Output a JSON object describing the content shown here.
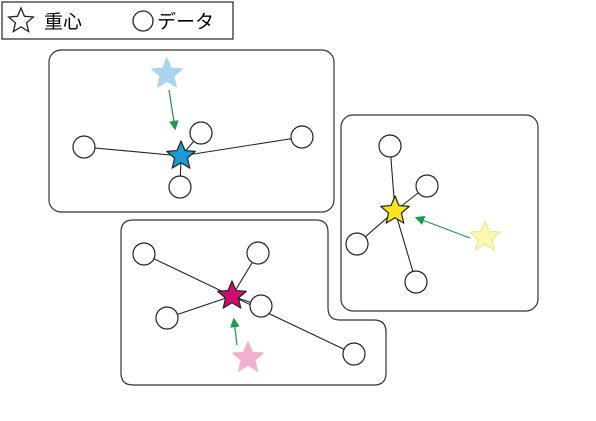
{
  "legend": {
    "centroid_label": "重心",
    "data_label": "データ",
    "centroid_icon": "star-outline-icon",
    "data_icon": "circle-outline-icon"
  },
  "clusters": [
    {
      "name": "blue-cluster",
      "centroid_color": "#1e9ad6",
      "previous_centroid_color": "#a8d4f0",
      "points": 4
    },
    {
      "name": "yellow-cluster",
      "centroid_color": "#f5e61e",
      "previous_centroid_color": "#fdf7b0",
      "points": 4
    },
    {
      "name": "magenta-cluster",
      "centroid_color": "#cc0e6e",
      "previous_centroid_color": "#f2b0cf",
      "points": 5
    }
  ],
  "colors": {
    "arrow": "#1a9a4c",
    "stroke": "#222222",
    "region_border": "#333333"
  }
}
